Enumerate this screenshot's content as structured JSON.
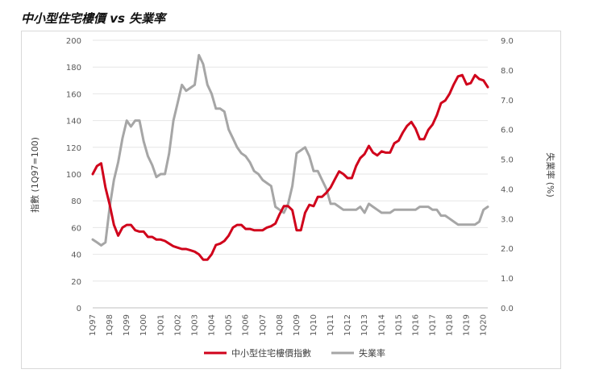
{
  "page": {
    "title": "中小型住宅樓價 vs 失業率"
  },
  "chart_data": {
    "type": "line",
    "title": "中小型住宅樓價 vs 失業率",
    "ylabel": "指數 (1Q97=100)",
    "y2label": "失業率 (%)",
    "xlabel": "",
    "ylim": [
      0,
      200
    ],
    "y2lim": [
      0,
      9
    ],
    "yticks": [
      "0",
      "20",
      "40",
      "60",
      "80",
      "100",
      "120",
      "140",
      "160",
      "180",
      "200"
    ],
    "y2ticks": [
      "0.0",
      "1.0",
      "2.0",
      "3.0",
      "4.0",
      "5.0",
      "6.0",
      "7.0",
      "8.0",
      "9.0"
    ],
    "xtick_labels": [
      "1Q97",
      "1Q98",
      "1Q99",
      "1Q00",
      "1Q01",
      "1Q02",
      "1Q03",
      "1Q04",
      "1Q05",
      "1Q06",
      "1Q07",
      "1Q08",
      "1Q09",
      "1Q10",
      "1Q11",
      "1Q12",
      "1Q13",
      "1Q14",
      "1Q15",
      "1Q16",
      "1Q17",
      "1Q18",
      "1Q19",
      "1Q20"
    ],
    "grid": true,
    "legend": "bottom",
    "series": [
      {
        "name": "中小型住宅樓價指數",
        "color": "#d0021b",
        "axis": "left",
        "values": [
          100,
          106,
          108,
          90,
          77,
          62,
          54,
          60,
          62,
          62,
          58,
          57,
          57,
          53,
          53,
          51,
          51,
          50,
          48,
          46,
          45,
          44,
          44,
          43,
          42,
          40,
          36,
          36,
          40,
          47,
          48,
          50,
          54,
          60,
          62,
          62,
          59,
          59,
          58,
          58,
          58,
          60,
          61,
          63,
          70,
          76,
          76,
          73,
          58,
          58,
          71,
          77,
          76,
          83,
          83,
          86,
          90,
          96,
          102,
          100,
          97,
          97,
          106,
          112,
          115,
          121,
          116,
          114,
          117,
          116,
          116,
          123,
          125,
          131,
          136,
          139,
          134,
          126,
          126,
          133,
          137,
          144,
          153,
          155,
          160,
          167,
          173,
          174,
          167,
          168,
          174,
          171,
          170,
          165
        ]
      },
      {
        "name": "失業率",
        "color": "#a6a6a6",
        "axis": "right",
        "values": [
          2.3,
          2.2,
          2.1,
          2.2,
          3.4,
          4.3,
          4.9,
          5.7,
          6.3,
          6.1,
          6.3,
          6.3,
          5.6,
          5.1,
          4.8,
          4.4,
          4.5,
          4.5,
          5.2,
          6.3,
          6.9,
          7.5,
          7.3,
          7.4,
          7.5,
          8.5,
          8.2,
          7.5,
          7.2,
          6.7,
          6.7,
          6.6,
          6.0,
          5.7,
          5.4,
          5.2,
          5.1,
          4.9,
          4.6,
          4.5,
          4.3,
          4.2,
          4.1,
          3.4,
          3.3,
          3.2,
          3.5,
          4.1,
          5.2,
          5.3,
          5.4,
          5.1,
          4.6,
          4.6,
          4.3,
          4.0,
          3.5,
          3.5,
          3.4,
          3.3,
          3.3,
          3.3,
          3.3,
          3.4,
          3.2,
          3.5,
          3.4,
          3.3,
          3.2,
          3.2,
          3.2,
          3.3,
          3.3,
          3.3,
          3.3,
          3.3,
          3.3,
          3.4,
          3.4,
          3.4,
          3.3,
          3.3,
          3.1,
          3.1,
          3.0,
          2.9,
          2.8,
          2.8,
          2.8,
          2.8,
          2.8,
          2.9,
          3.3,
          3.4
        ]
      }
    ]
  }
}
